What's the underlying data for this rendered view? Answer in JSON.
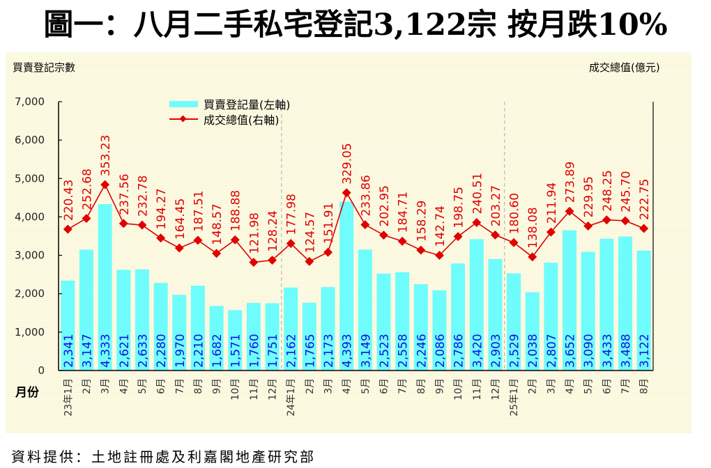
{
  "title": "圖一：八月二手私宅登記3,122宗  按月跌10%",
  "footer": "資料提供：土地註冊處及利嘉閣地產研究部",
  "colors": {
    "bar": "#6ffcfc",
    "line": "#e00000",
    "bar_label": "#1010e0",
    "line_label": "#e00000",
    "axis": "#000000",
    "separator": "#b8b8b8"
  },
  "chart_data": {
    "type": "bar+line",
    "title": "圖一：八月二手私宅登記3,122宗  按月跌10%",
    "ylabel_left": "買賣登記宗數",
    "ylabel_right": "成交總值(億元)",
    "xlabel": "月份",
    "ylim_left": [
      0,
      7000
    ],
    "ylim_right": [
      -200,
      600
    ],
    "yticks_left": [
      "0",
      "1,000",
      "2,000",
      "3,000",
      "4,000",
      "5,000",
      "6,000",
      "7,000"
    ],
    "ytick_values_left": [
      0,
      1000,
      2000,
      3000,
      4000,
      5000,
      6000,
      7000
    ],
    "grid": false,
    "legend_position": "top-left",
    "categories": [
      "23年1月",
      "2月",
      "3月",
      "4月",
      "5月",
      "6月",
      "7月",
      "8月",
      "9月",
      "10月",
      "11月",
      "12月",
      "24年1月",
      "2月",
      "3月",
      "4月",
      "5月",
      "6月",
      "7月",
      "8月",
      "9月",
      "10月",
      "11月",
      "12月",
      "25年1月",
      "2月",
      "3月",
      "4月",
      "5月",
      "6月",
      "7月",
      "8月"
    ],
    "year_separators_after_index": [
      11,
      23
    ],
    "series": [
      {
        "name": "買賣登記量(左軸)",
        "type": "bar",
        "axis": "left",
        "values": [
          2341,
          3147,
          4333,
          2621,
          2633,
          2280,
          1970,
          2210,
          1682,
          1571,
          1760,
          1751,
          2162,
          1765,
          2173,
          4393,
          3149,
          2523,
          2558,
          2246,
          2086,
          2786,
          3420,
          2903,
          2529,
          2038,
          2807,
          3652,
          3090,
          3433,
          3488,
          3122
        ],
        "labels": [
          "2,341",
          "3,147",
          "4,333",
          "2,621",
          "2,633",
          "2,280",
          "1,970",
          "2,210",
          "1,682",
          "1,571",
          "1,760",
          "1,751",
          "2,162",
          "1,765",
          "2,173",
          "4,393",
          "3,149",
          "2,523",
          "2,558",
          "2,246",
          "2,086",
          "2,786",
          "3,420",
          "2,903",
          "2,529",
          "2,038",
          "2,807",
          "3,652",
          "3,090",
          "3,433",
          "3,488",
          "3,122"
        ]
      },
      {
        "name": "成交總值(右軸)",
        "type": "line",
        "axis": "right",
        "values": [
          220.43,
          252.68,
          353.23,
          237.56,
          232.78,
          194.27,
          164.45,
          187.51,
          148.57,
          188.88,
          121.98,
          128.24,
          177.98,
          124.57,
          151.91,
          329.05,
          233.86,
          202.95,
          184.71,
          158.29,
          142.74,
          198.75,
          240.51,
          203.27,
          180.6,
          138.08,
          211.94,
          273.89,
          229.95,
          248.25,
          245.7,
          222.75
        ],
        "labels": [
          "220.43",
          "252.68",
          "353.23",
          "237.56",
          "232.78",
          "194.27",
          "164.45",
          "187.51",
          "148.57",
          "188.88",
          "121.98",
          "128.24",
          "177.98",
          "124.57",
          "151.91",
          "329.05",
          "233.86",
          "202.95",
          "184.71",
          "158.29",
          "142.74",
          "198.75",
          "240.51",
          "203.27",
          "180.60",
          "138.08",
          "211.94",
          "273.89",
          "229.95",
          "248.25",
          "245.70",
          "222.75"
        ]
      }
    ]
  }
}
